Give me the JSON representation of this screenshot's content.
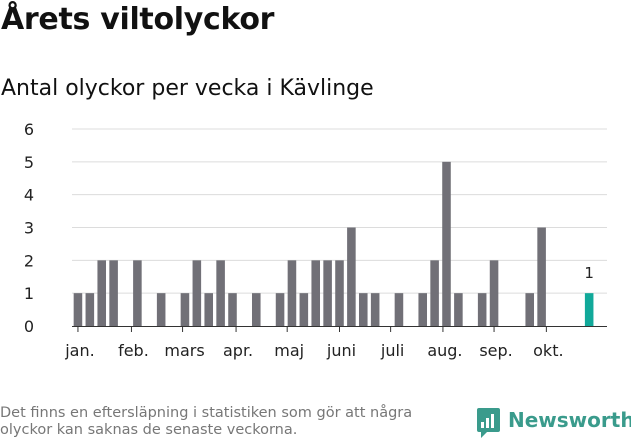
{
  "header": {
    "title": "Årets viltolyckor",
    "subtitle": "Antal olyckor per vecka i Kävlinge"
  },
  "footer": {
    "note": "Det finns en eftersläpning i statistiken som gör att några olyckor kan saknas de senaste veckorna.",
    "brand": "Newsworthy"
  },
  "colors": {
    "bar": "#717077",
    "highlight": "#11a99a",
    "grid": "#dcdcdc",
    "axis": "#333333",
    "text": "#222222",
    "brand": "#3a9b8c"
  },
  "chart_data": {
    "type": "bar",
    "title": "Antal olyckor per vecka i Kävlinge",
    "xlabel": "",
    "ylabel": "",
    "ylim": [
      0,
      6
    ],
    "yticks": [
      0,
      1,
      2,
      3,
      4,
      5,
      6
    ],
    "grid": true,
    "x_unit": "week",
    "x_range": [
      0.5,
      45.5
    ],
    "weeks": [
      1,
      2,
      3,
      4,
      5,
      6,
      7,
      8,
      9,
      10,
      11,
      12,
      13,
      14,
      15,
      16,
      17,
      18,
      19,
      20,
      21,
      22,
      23,
      24,
      25,
      26,
      27,
      28,
      29,
      30,
      31,
      32,
      33,
      34,
      35,
      36,
      37,
      38,
      39,
      40,
      41,
      42,
      43,
      44,
      45
    ],
    "values": [
      1,
      1,
      2,
      2,
      0,
      2,
      0,
      1,
      0,
      1,
      2,
      1,
      2,
      1,
      0,
      1,
      0,
      1,
      2,
      1,
      2,
      2,
      2,
      3,
      1,
      1,
      0,
      1,
      0,
      1,
      2,
      5,
      1,
      0,
      1,
      2,
      0,
      0,
      1,
      3,
      0,
      0,
      0,
      1,
      null
    ],
    "highlight_week": 44,
    "highlight_label": "1",
    "month_labels": [
      {
        "label": "jan.",
        "week": 1.0
      },
      {
        "label": "feb.",
        "week": 5.5
      },
      {
        "label": "mars",
        "week": 9.8
      },
      {
        "label": "apr.",
        "week": 14.3
      },
      {
        "label": "maj",
        "week": 18.6
      },
      {
        "label": "juni",
        "week": 23.0
      },
      {
        "label": "juli",
        "week": 27.3
      },
      {
        "label": "aug.",
        "week": 31.7
      },
      {
        "label": "sep.",
        "week": 36.0
      },
      {
        "label": "okt.",
        "week": 40.4
      }
    ]
  }
}
